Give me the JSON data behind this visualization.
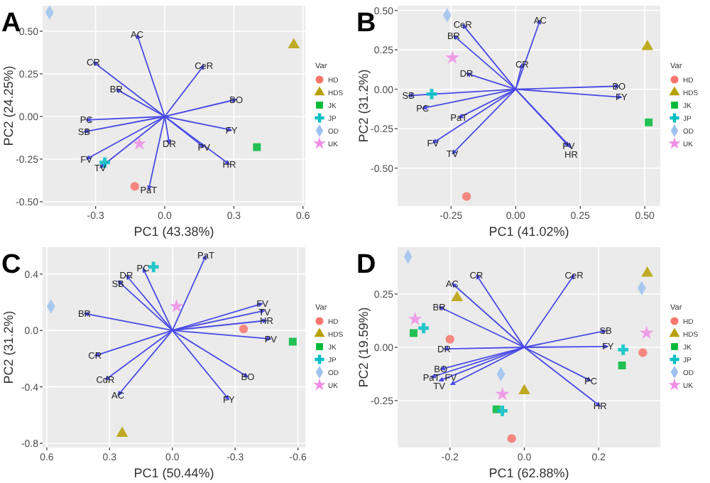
{
  "chart_data": [
    {
      "type": "scatter",
      "title": "A",
      "xlabel": "PC1 (43.38%)",
      "ylabel": "PC2 (24.25%)",
      "legend_title": "Var",
      "legend": "right",
      "grid": true,
      "xlim": [
        -0.53,
        0.61
      ],
      "ylim": [
        -0.525,
        0.65
      ],
      "xticks": [
        {
          "value": -0.3,
          "label": "-0.3"
        },
        {
          "value": 0,
          "label": "0.0"
        },
        {
          "value": 0.3,
          "label": "0.3"
        },
        {
          "value": 0.6,
          "label": "0.6"
        }
      ],
      "yticks": [
        {
          "value": -0.5,
          "label": "-0.50"
        },
        {
          "value": -0.25,
          "label": "-0.25"
        },
        {
          "value": 0,
          "label": "0.00"
        },
        {
          "value": 0.25,
          "label": "0.25"
        },
        {
          "value": 0.5,
          "label": "0.50"
        }
      ],
      "series": [
        {
          "name": "HD",
          "color": "#f8766d",
          "marker": "circle",
          "x": [
            -0.13
          ],
          "values": [
            -0.41
          ]
        },
        {
          "name": "HDS",
          "color": "#b79f00",
          "marker": "triangle",
          "x": [
            0.56
          ],
          "values": [
            0.42
          ]
        },
        {
          "name": "JK",
          "color": "#00ba38",
          "marker": "square",
          "x": [
            0.4
          ],
          "values": [
            -0.18
          ]
        },
        {
          "name": "JP",
          "color": "#00bfc4",
          "marker": "cross",
          "x": [
            -0.26
          ],
          "values": [
            -0.27
          ]
        },
        {
          "name": "OD",
          "color": "#9ec2f0",
          "marker": "diamond",
          "x": [
            -0.5
          ],
          "values": [
            0.61
          ]
        },
        {
          "name": "UK",
          "color": "#f08ee6",
          "marker": "star",
          "x": [
            -0.11
          ],
          "values": [
            -0.16
          ]
        },
        {
          "type": "line",
          "name": "AC",
          "color": "#4a4ae6",
          "x": [
            0,
            -0.12
          ],
          "values": [
            0,
            0.48
          ]
        },
        {
          "type": "line",
          "name": "CR",
          "color": "#4a4ae6",
          "x": [
            0,
            -0.31
          ],
          "values": [
            0,
            0.32
          ]
        },
        {
          "type": "line",
          "name": "CeR",
          "color": "#4a4ae6",
          "x": [
            0,
            0.17
          ],
          "values": [
            0,
            0.3
          ]
        },
        {
          "type": "line",
          "name": "BR",
          "color": "#4a4ae6",
          "x": [
            0,
            -0.21
          ],
          "values": [
            0,
            0.16
          ]
        },
        {
          "type": "line",
          "name": "BO",
          "color": "#4a4ae6",
          "x": [
            0,
            0.31
          ],
          "values": [
            0,
            0.1
          ]
        },
        {
          "type": "line",
          "name": "PC",
          "color": "#4a4ae6",
          "x": [
            0,
            -0.34
          ],
          "values": [
            0,
            -0.02
          ]
        },
        {
          "type": "line",
          "name": "SB",
          "color": "#4a4ae6",
          "x": [
            0,
            -0.35
          ],
          "values": [
            0,
            -0.09
          ]
        },
        {
          "type": "line",
          "name": "FY",
          "color": "#4a4ae6",
          "x": [
            0,
            0.29
          ],
          "values": [
            0,
            -0.08
          ]
        },
        {
          "type": "line",
          "name": "DR",
          "color": "#4a4ae6",
          "x": [
            0,
            0.02
          ],
          "values": [
            0,
            -0.16
          ]
        },
        {
          "type": "line",
          "name": "PV",
          "color": "#4a4ae6",
          "x": [
            0,
            0.17
          ],
          "values": [
            0,
            -0.18
          ]
        },
        {
          "type": "line",
          "name": "HR",
          "color": "#4a4ae6",
          "x": [
            0,
            0.28
          ],
          "values": [
            0,
            -0.28
          ]
        },
        {
          "type": "line",
          "name": "FV",
          "color": "#4a4ae6",
          "x": [
            0,
            -0.34
          ],
          "values": [
            0,
            -0.25
          ]
        },
        {
          "type": "line",
          "name": "TV",
          "color": "#4a4ae6",
          "x": [
            0,
            -0.28
          ],
          "values": [
            0,
            -0.3
          ]
        },
        {
          "type": "line",
          "name": "PaT",
          "color": "#4a4ae6",
          "x": [
            0,
            -0.07
          ],
          "values": [
            0,
            -0.43
          ]
        }
      ]
    },
    {
      "type": "scatter",
      "title": "B",
      "xlabel": "PC1 (41.02%)",
      "ylabel": "PC2 (31.2%)",
      "legend_title": "Var",
      "legend": "right",
      "grid": true,
      "xlim": [
        -0.457,
        0.56
      ],
      "ylim": [
        -0.74,
        0.53
      ],
      "xticks": [
        {
          "value": -0.25,
          "label": "-0.25"
        },
        {
          "value": 0,
          "label": "0.00"
        },
        {
          "value": 0.25,
          "label": "0.25"
        },
        {
          "value": 0.5,
          "label": "0.50"
        }
      ],
      "yticks": [
        {
          "value": -0.5,
          "label": "-0.50"
        },
        {
          "value": -0.25,
          "label": "-0.25"
        },
        {
          "value": 0,
          "label": "0.00"
        },
        {
          "value": 0.25,
          "label": "0.25"
        },
        {
          "value": 0.5,
          "label": "0.50"
        }
      ],
      "series": [
        {
          "name": "HD",
          "color": "#f8766d",
          "marker": "circle",
          "x": [
            -0.19
          ],
          "values": [
            -0.68
          ]
        },
        {
          "name": "HDS",
          "color": "#b79f00",
          "marker": "triangle",
          "x": [
            0.51
          ],
          "values": [
            0.27
          ]
        },
        {
          "name": "JK",
          "color": "#00ba38",
          "marker": "square",
          "x": [
            0.515
          ],
          "values": [
            -0.21
          ]
        },
        {
          "name": "JP",
          "color": "#00bfc4",
          "marker": "cross",
          "x": [
            -0.325
          ],
          "values": [
            -0.03
          ]
        },
        {
          "name": "OD",
          "color": "#9ec2f0",
          "marker": "diamond",
          "x": [
            -0.265
          ],
          "values": [
            0.47
          ]
        },
        {
          "name": "UK",
          "color": "#f08ee6",
          "marker": "star",
          "x": [
            -0.245
          ],
          "values": [
            0.2
          ]
        },
        {
          "type": "line",
          "name": "AC",
          "color": "#4a4ae6",
          "x": [
            0,
            0.095
          ],
          "values": [
            0,
            0.44
          ]
        },
        {
          "type": "line",
          "name": "CeR",
          "color": "#4a4ae6",
          "x": [
            0,
            -0.205
          ],
          "values": [
            0,
            0.41
          ]
        },
        {
          "type": "line",
          "name": "BR",
          "color": "#4a4ae6",
          "x": [
            0,
            -0.24
          ],
          "values": [
            0,
            0.34
          ]
        },
        {
          "type": "line",
          "name": "CR",
          "color": "#4a4ae6",
          "x": [
            0,
            0.025
          ],
          "values": [
            0,
            0.16
          ]
        },
        {
          "type": "line",
          "name": "DR",
          "color": "#4a4ae6",
          "x": [
            0,
            -0.19
          ],
          "values": [
            0,
            0.1
          ]
        },
        {
          "type": "line",
          "name": "BO",
          "color": "#4a4ae6",
          "x": [
            0,
            0.4
          ],
          "values": [
            0,
            0.02
          ]
        },
        {
          "type": "line",
          "name": "FY",
          "color": "#4a4ae6",
          "x": [
            0,
            0.41
          ],
          "values": [
            0,
            -0.05
          ]
        },
        {
          "type": "line",
          "name": "SB",
          "color": "#4a4ae6",
          "x": [
            0,
            -0.415
          ],
          "values": [
            0,
            -0.04
          ]
        },
        {
          "type": "line",
          "name": "PC",
          "color": "#4a4ae6",
          "x": [
            0,
            -0.36
          ],
          "values": [
            0,
            -0.12
          ]
        },
        {
          "type": "line",
          "name": "PaT",
          "color": "#4a4ae6",
          "x": [
            0,
            -0.22
          ],
          "values": [
            0,
            -0.18
          ]
        },
        {
          "type": "line",
          "name": "FV",
          "color": "#4a4ae6",
          "x": [
            0,
            -0.32
          ],
          "values": [
            0,
            -0.34
          ]
        },
        {
          "type": "line",
          "name": "TV",
          "color": "#4a4ae6",
          "x": [
            0,
            -0.245
          ],
          "values": [
            0,
            -0.41
          ]
        },
        {
          "type": "line",
          "name": "PV",
          "color": "#4a4ae6",
          "x": [
            0,
            0.205
          ],
          "values": [
            0,
            -0.36
          ]
        },
        {
          "type": "line",
          "name": "HR",
          "color": "#4a4ae6",
          "x": [
            0,
            0.215
          ],
          "values": [
            0,
            -0.37
          ]
        }
      ]
    },
    {
      "type": "scatter",
      "title": "C",
      "xlabel": "PC1 (50.44%)",
      "ylabel": "PC2 (31.2%)",
      "legend_title": "Var",
      "legend": "right",
      "grid": true,
      "xlim": [
        0.62,
        -0.635
      ],
      "ylim": [
        -0.83,
        0.59
      ],
      "xticks": [
        {
          "value": 0.6,
          "label": "0.6"
        },
        {
          "value": 0.3,
          "label": "0.3"
        },
        {
          "value": 0,
          "label": "0.0"
        },
        {
          "value": -0.3,
          "label": "-0.3"
        },
        {
          "value": -0.6,
          "label": "-0.6"
        }
      ],
      "yticks": [
        {
          "value": -0.8,
          "label": "-0.8"
        },
        {
          "value": -0.4,
          "label": "-0.4"
        },
        {
          "value": 0,
          "label": "0.0"
        },
        {
          "value": 0.4,
          "label": "0.4"
        }
      ],
      "series": [
        {
          "name": "HD",
          "color": "#f8766d",
          "marker": "circle",
          "x": [
            -0.34
          ],
          "values": [
            0.01
          ]
        },
        {
          "name": "HDS",
          "color": "#b79f00",
          "marker": "triangle",
          "x": [
            0.24
          ],
          "values": [
            -0.73
          ]
        },
        {
          "name": "JK",
          "color": "#00ba38",
          "marker": "square",
          "x": [
            -0.575
          ],
          "values": [
            -0.08
          ]
        },
        {
          "name": "JP",
          "color": "#00bfc4",
          "marker": "cross",
          "x": [
            0.09
          ],
          "values": [
            0.45
          ]
        },
        {
          "name": "OD",
          "color": "#9ec2f0",
          "marker": "diamond",
          "x": [
            0.58
          ],
          "values": [
            0.17
          ]
        },
        {
          "name": "UK",
          "color": "#f08ee6",
          "marker": "star",
          "x": [
            -0.02
          ],
          "values": [
            0.17
          ]
        },
        {
          "type": "line",
          "name": "PaT",
          "color": "#4a4ae6",
          "x": [
            0,
            -0.16
          ],
          "values": [
            0,
            0.53
          ]
        },
        {
          "type": "line",
          "name": "PC",
          "color": "#4a4ae6",
          "x": [
            0,
            0.14
          ],
          "values": [
            0,
            0.44
          ]
        },
        {
          "type": "line",
          "name": "DR",
          "color": "#4a4ae6",
          "x": [
            0,
            0.22
          ],
          "values": [
            0,
            0.39
          ]
        },
        {
          "type": "line",
          "name": "SB",
          "color": "#4a4ae6",
          "x": [
            0,
            0.26
          ],
          "values": [
            0,
            0.35
          ]
        },
        {
          "type": "line",
          "name": "BR",
          "color": "#4a4ae6",
          "x": [
            0,
            0.42
          ],
          "values": [
            0,
            0.12
          ]
        },
        {
          "type": "line",
          "name": "FV",
          "color": "#4a4ae6",
          "x": [
            0,
            -0.43
          ],
          "values": [
            0,
            0.19
          ]
        },
        {
          "type": "line",
          "name": "TV",
          "color": "#4a4ae6",
          "x": [
            0,
            -0.44
          ],
          "values": [
            0,
            0.14
          ]
        },
        {
          "type": "line",
          "name": "HR",
          "color": "#4a4ae6",
          "x": [
            0,
            -0.45
          ],
          "values": [
            0,
            0.07
          ]
        },
        {
          "type": "line",
          "name": "PV",
          "color": "#4a4ae6",
          "x": [
            0,
            -0.47
          ],
          "values": [
            0,
            -0.06
          ]
        },
        {
          "type": "line",
          "name": "CR",
          "color": "#4a4ae6",
          "x": [
            0,
            0.37
          ],
          "values": [
            0,
            -0.18
          ]
        },
        {
          "type": "line",
          "name": "CdR",
          "color": "#4a4ae6",
          "x": [
            0,
            0.32
          ],
          "values": [
            0,
            -0.35
          ]
        },
        {
          "type": "line",
          "name": "AC",
          "color": "#4a4ae6",
          "x": [
            0,
            0.26
          ],
          "values": [
            0,
            -0.46
          ]
        },
        {
          "type": "line",
          "name": "BO",
          "color": "#4a4ae6",
          "x": [
            0,
            -0.36
          ],
          "values": [
            0,
            -0.33
          ]
        },
        {
          "type": "line",
          "name": "FY",
          "color": "#4a4ae6",
          "x": [
            0,
            -0.27
          ],
          "values": [
            0,
            -0.49
          ]
        }
      ]
    },
    {
      "type": "scatter",
      "title": "D",
      "xlabel": "PC1 (62.88%)",
      "ylabel": "PC2 (19.59%)",
      "legend_title": "Var",
      "legend": "right",
      "grid": true,
      "xlim": [
        -0.341,
        0.366
      ],
      "ylim": [
        -0.47,
        0.47
      ],
      "xticks": [
        {
          "value": -0.2,
          "label": "-0.2"
        },
        {
          "value": 0,
          "label": "0.0"
        },
        {
          "value": 0.2,
          "label": "0.2"
        }
      ],
      "yticks": [
        {
          "value": -0.25,
          "label": "-0.25"
        },
        {
          "value": 0,
          "label": "0.00"
        },
        {
          "value": 0.25,
          "label": "0.25"
        }
      ],
      "series": [
        {
          "name": "HD",
          "color": "#f8766d",
          "marker": "circle",
          "x": [
            -0.2,
            -0.034,
            0.319
          ],
          "values": [
            0.038,
            -0.428,
            -0.025
          ]
        },
        {
          "name": "HDS",
          "color": "#b79f00",
          "marker": "triangle",
          "x": [
            -0.181,
            0.0,
            0.331
          ],
          "values": [
            0.233,
            -0.204,
            0.348
          ]
        },
        {
          "name": "JK",
          "color": "#00ba38",
          "marker": "square",
          "x": [
            -0.298,
            -0.075,
            0.263
          ],
          "values": [
            0.067,
            -0.291,
            -0.085
          ]
        },
        {
          "name": "JP",
          "color": "#00bfc4",
          "marker": "cross",
          "x": [
            -0.271,
            -0.059,
            0.266
          ],
          "values": [
            0.09,
            -0.298,
            -0.011
          ]
        },
        {
          "name": "OD",
          "color": "#9ec2f0",
          "marker": "diamond",
          "x": [
            -0.313,
            -0.063,
            0.316
          ],
          "values": [
            0.426,
            -0.126,
            0.278
          ]
        },
        {
          "name": "UK",
          "color": "#f08ee6",
          "marker": "star",
          "x": [
            -0.294,
            -0.059,
            0.329
          ],
          "values": [
            0.132,
            -0.22,
            0.067
          ]
        },
        {
          "type": "line",
          "name": "AC",
          "color": "#4a4ae6",
          "x": [
            0,
            -0.194
          ],
          "values": [
            0,
            0.3
          ]
        },
        {
          "type": "line",
          "name": "CR",
          "color": "#4a4ae6",
          "x": [
            0,
            -0.129
          ],
          "values": [
            0,
            0.34
          ]
        },
        {
          "type": "line",
          "name": "CeR",
          "color": "#4a4ae6",
          "x": [
            0,
            0.134
          ],
          "values": [
            0,
            0.34
          ]
        },
        {
          "type": "line",
          "name": "BR",
          "color": "#4a4ae6",
          "x": [
            0,
            -0.229
          ],
          "values": [
            0,
            0.19
          ]
        },
        {
          "type": "line",
          "name": "SB",
          "color": "#4a4ae6",
          "x": [
            0,
            0.219
          ],
          "values": [
            0,
            0.078
          ]
        },
        {
          "type": "line",
          "name": "FY",
          "color": "#4a4ae6",
          "x": [
            0,
            0.225
          ],
          "values": [
            0,
            0.004
          ]
        },
        {
          "type": "line",
          "name": "DR",
          "color": "#4a4ae6",
          "x": [
            0,
            -0.216
          ],
          "values": [
            0,
            -0.007
          ]
        },
        {
          "type": "line",
          "name": "BO",
          "color": "#4a4ae6",
          "x": [
            0,
            -0.225
          ],
          "values": [
            0,
            -0.103
          ]
        },
        {
          "type": "line",
          "name": "PaT",
          "color": "#4a4ae6",
          "x": [
            0,
            -0.25
          ],
          "values": [
            0,
            -0.14
          ]
        },
        {
          "type": "line",
          "name": "TV",
          "color": "#4a4ae6",
          "x": [
            0,
            -0.229
          ],
          "values": [
            0,
            -0.157
          ]
        },
        {
          "type": "line",
          "name": "FV",
          "color": "#4a4ae6",
          "x": [
            0,
            -0.198
          ],
          "values": [
            0,
            -0.175
          ]
        },
        {
          "type": "line",
          "name": "PC",
          "color": "#4a4ae6",
          "x": [
            0,
            0.179
          ],
          "values": [
            0,
            -0.157
          ]
        },
        {
          "type": "line",
          "name": "HR",
          "color": "#4a4ae6",
          "x": [
            0,
            0.204
          ],
          "values": [
            0,
            -0.276
          ]
        }
      ]
    }
  ]
}
